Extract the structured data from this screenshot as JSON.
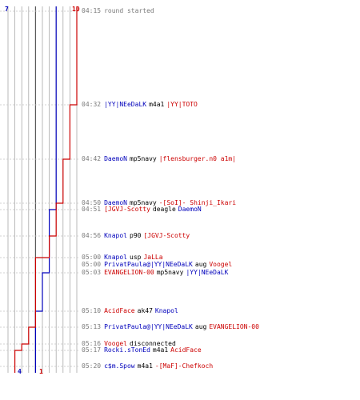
{
  "colors": {
    "blue": "#0000bb",
    "red": "#cc0000",
    "grid": "#a8a8a8",
    "dark_line": "#5a5a5a",
    "text_gray": "#7a7a7a"
  },
  "counts": {
    "blue_start": "7",
    "red_start": "10",
    "blue_end": "4",
    "red_end": "1"
  },
  "events": [
    {
      "time": "04:15",
      "text": "round started",
      "system": true
    },
    {
      "time": "04:32",
      "killer": "|YY|NEeDaLK",
      "killer_team": "blue",
      "weapon": "m4a1",
      "victim": "|YY|TOTO",
      "victim_team": "red"
    },
    {
      "time": "04:42",
      "killer": "DaemoN",
      "killer_team": "blue",
      "weapon": "mp5navy",
      "victim": "|flensburger.n0 a1m|",
      "victim_team": "red"
    },
    {
      "time": "04:50",
      "killer": "DaemoN",
      "killer_team": "blue",
      "weapon": "mp5navy",
      "victim": "-[SoI]- Shinji_Ikari",
      "victim_team": "red"
    },
    {
      "time": "04:51",
      "killer": "[JGVJ-Scotty",
      "killer_team": "red",
      "weapon": "deagle",
      "victim": "DaemoN",
      "victim_team": "blue"
    },
    {
      "time": "04:56",
      "killer": "Knapol",
      "killer_team": "blue",
      "weapon": "p90",
      "victim": "[JGVJ-Scotty",
      "victim_team": "red"
    },
    {
      "time": "05:00",
      "killer": "Knapol",
      "killer_team": "blue",
      "weapon": "usp",
      "victim": "JaLLa",
      "victim_team": "red"
    },
    {
      "time": "05:00",
      "killer": "PrivatPaula@|YY|NEeDaLK",
      "killer_team": "blue",
      "weapon": "aug",
      "victim": "Voogel",
      "victim_team": "red"
    },
    {
      "time": "05:03",
      "killer": "EVANGELION-00",
      "killer_team": "red",
      "weapon": "mp5navy",
      "victim": "|YY|NEeDaLK",
      "victim_team": "blue"
    },
    {
      "time": "05:10",
      "killer": "AcidFace",
      "killer_team": "red",
      "weapon": "ak47",
      "victim": "Knapol",
      "victim_team": "blue"
    },
    {
      "time": "05:13",
      "killer": "PrivatPaula@|YY|NEeDaLK",
      "killer_team": "blue",
      "weapon": "aug",
      "victim": "EVANGELION-00",
      "victim_team": "red"
    },
    {
      "time": "05:16",
      "killer": "Voogel",
      "killer_team": "red",
      "weapon": "disconnected",
      "victim": "",
      "victim_team": ""
    },
    {
      "time": "05:17",
      "killer": "Rocki.sTonEd",
      "killer_team": "blue",
      "weapon": "m4a1",
      "victim": "AcidFace",
      "victim_team": "red"
    },
    {
      "time": "05:20",
      "killer": "c$m.Spow",
      "killer_team": "blue",
      "weapon": "m4a1",
      "victim": "-[MaF]-Chefkoch",
      "victim_team": "red"
    }
  ],
  "chart_data": {
    "type": "line",
    "series": [
      {
        "team": "blue",
        "color": "#0000bb",
        "steps": [
          {
            "time": "04:15",
            "alive": 7
          },
          {
            "time": "04:51",
            "alive": 6
          },
          {
            "time": "05:03",
            "alive": 5
          },
          {
            "time": "05:10",
            "alive": 4
          }
        ]
      },
      {
        "team": "red",
        "color": "#cc0000",
        "steps": [
          {
            "time": "04:15",
            "alive": 10
          },
          {
            "time": "04:32",
            "alive": 9
          },
          {
            "time": "04:42",
            "alive": 8
          },
          {
            "time": "04:50",
            "alive": 7
          },
          {
            "time": "04:56",
            "alive": 6
          },
          {
            "time": "05:00",
            "alive": 5
          },
          {
            "time": "05:00",
            "alive": 4
          },
          {
            "time": "05:13",
            "alive": 3
          },
          {
            "time": "05:16",
            "alive": 2
          },
          {
            "time": "05:17",
            "alive": 1
          }
        ]
      }
    ],
    "x_range": [
      0,
      10
    ],
    "grid": true
  }
}
